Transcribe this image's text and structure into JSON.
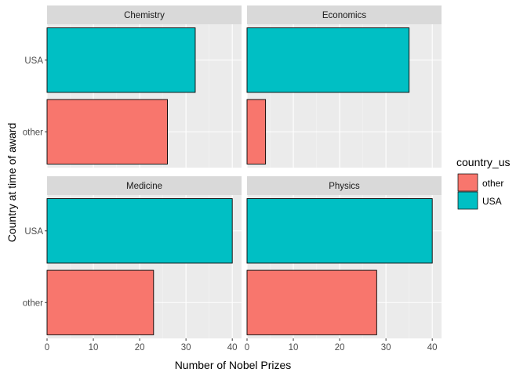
{
  "chart_data": {
    "type": "bar",
    "orientation": "horizontal",
    "facet": "grid-2x2",
    "xlabel": "Number of Nobel Prizes",
    "ylabel": "Country at time of award",
    "categories": [
      "USA",
      "other"
    ],
    "xlim": [
      0,
      42
    ],
    "major_ticks": [
      0,
      10,
      20,
      30,
      40
    ],
    "grid": true,
    "legend": {
      "title": "country_us",
      "placement": "right",
      "entries": [
        {
          "label": "other",
          "color": "#F8766D"
        },
        {
          "label": "USA",
          "color": "#00BFC4"
        }
      ]
    },
    "panels": [
      {
        "title": "Chemistry",
        "values": {
          "USA": 32,
          "other": 26
        }
      },
      {
        "title": "Economics",
        "values": {
          "USA": 35,
          "other": 4
        }
      },
      {
        "title": "Medicine",
        "values": {
          "USA": 40,
          "other": 23
        }
      },
      {
        "title": "Physics",
        "values": {
          "USA": 40,
          "other": 28
        }
      }
    ]
  }
}
